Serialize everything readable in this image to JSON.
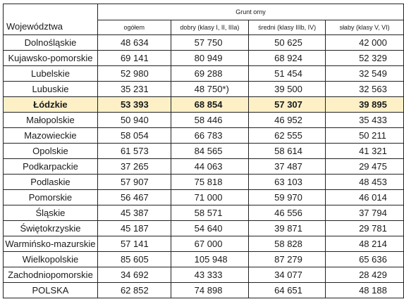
{
  "header": {
    "voivodeship_label": "Województwa",
    "group_label": "Grunt orny",
    "columns": [
      "ogółem",
      "dobry (klasy I, II, IIIa)",
      "średni (klasy IIIb, IV)",
      "słaby (klasy V, VI)"
    ]
  },
  "rows": [
    {
      "name": "Dolnośląskie",
      "values": [
        "48 634",
        "57 750",
        "50 625",
        "42 000"
      ]
    },
    {
      "name": "Kujawsko-pomorskie",
      "values": [
        "69 141",
        "80 949",
        "68 924",
        "52 329"
      ]
    },
    {
      "name": "Lubelskie",
      "values": [
        "52 980",
        "69 288",
        "51 454",
        "32 549"
      ]
    },
    {
      "name": "Lubuskie",
      "values": [
        "35 231",
        "48 750*)",
        "39 500",
        "32 563"
      ]
    },
    {
      "name": "Łódzkie",
      "values": [
        "53 393",
        "68 854",
        "57 307",
        "39 895"
      ],
      "highlight": true
    },
    {
      "name": "Małopolskie",
      "values": [
        "50 940",
        "58 446",
        "46 952",
        "35 433"
      ]
    },
    {
      "name": "Mazowieckie",
      "values": [
        "58 054",
        "66 783",
        "62 555",
        "50 211"
      ]
    },
    {
      "name": "Opolskie",
      "values": [
        "61 573",
        "84 565",
        "58 614",
        "41 321"
      ]
    },
    {
      "name": "Podkarpackie",
      "values": [
        "37 265",
        "44 063",
        "37 487",
        "29 475"
      ]
    },
    {
      "name": "Podlaskie",
      "values": [
        "57 907",
        "75 818",
        "63 103",
        "48 453"
      ]
    },
    {
      "name": "Pomorskie",
      "values": [
        "56 467",
        "71 000",
        "59 970",
        "46 014"
      ]
    },
    {
      "name": "Śląskie",
      "values": [
        "45 387",
        "58 571",
        "46 556",
        "37 794"
      ]
    },
    {
      "name": "Świętokrzyskie",
      "values": [
        "45 187",
        "54 640",
        "39 871",
        "29 781"
      ]
    },
    {
      "name": "Warmińsko-mazurskie",
      "values": [
        "57 141",
        "67 000",
        "58 828",
        "48 214"
      ]
    },
    {
      "name": "Wielkopolskie",
      "values": [
        "85 605",
        "105 948",
        "87 279",
        "65 636"
      ]
    },
    {
      "name": "Zachodniopomorskie",
      "values": [
        "34 692",
        "43 333",
        "34 077",
        "28 429"
      ]
    },
    {
      "name": "POLSKA",
      "values": [
        "62 852",
        "74 898",
        "64 651",
        "48 188"
      ]
    }
  ],
  "colors": {
    "highlight_row_background": "#fdf0c7",
    "border": "#222222"
  }
}
